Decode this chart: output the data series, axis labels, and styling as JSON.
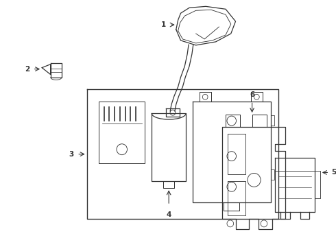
{
  "bg_color": "#ffffff",
  "line_color": "#333333",
  "fig_width": 4.9,
  "fig_height": 3.6,
  "dpi": 100
}
